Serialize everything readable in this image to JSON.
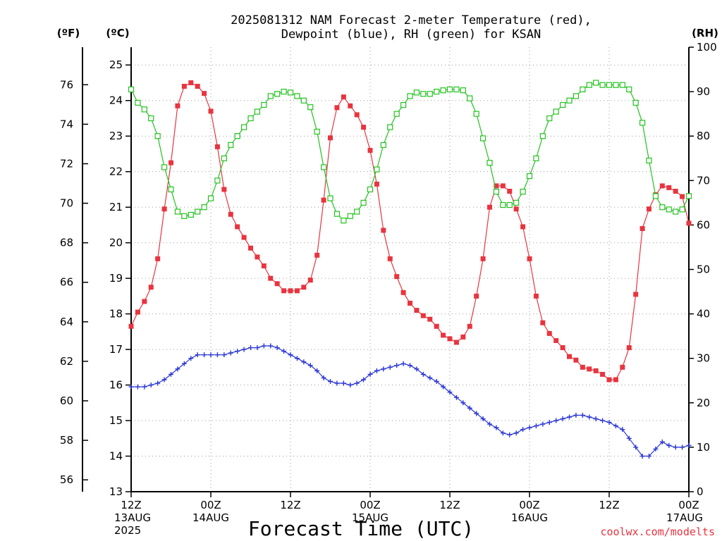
{
  "title_line1": "2025081312 NAM Forecast 2-meter Temperature (red),",
  "title_line2": "Dewpoint (blue), RH (green) for KSAN",
  "unit_f": "(ºF)",
  "unit_c": "(ºC)",
  "unit_rh": "(RH)",
  "x_axis_label": "Forecast Time (UTC)",
  "credit": "coolwx.com/modelts",
  "chart_data": {
    "type": "line",
    "title": "2025081312 NAM Forecast 2-meter Temperature (red), Dewpoint (blue), RH (green) for KSAN",
    "xlabel": "Forecast Time (UTC)",
    "x_forecast_hours": [
      0,
      1,
      2,
      3,
      4,
      5,
      6,
      7,
      8,
      9,
      10,
      11,
      12,
      13,
      14,
      15,
      16,
      17,
      18,
      19,
      20,
      21,
      22,
      23,
      24,
      25,
      26,
      27,
      28,
      29,
      30,
      31,
      32,
      33,
      34,
      35,
      36,
      37,
      38,
      39,
      40,
      41,
      42,
      43,
      44,
      45,
      46,
      47,
      48,
      49,
      50,
      51,
      52,
      53,
      54,
      55,
      56,
      57,
      58,
      59,
      60,
      61,
      62,
      63,
      64,
      65,
      66,
      67,
      68,
      69,
      70,
      71,
      72,
      73,
      74,
      75,
      76,
      77,
      78,
      79,
      80,
      81,
      82,
      83,
      84
    ],
    "x_ticks": [
      {
        "hour": 0,
        "lines": [
          "12Z",
          "13AUG",
          "2025"
        ]
      },
      {
        "hour": 12,
        "lines": [
          "00Z",
          "14AUG"
        ]
      },
      {
        "hour": 24,
        "lines": [
          "12Z"
        ]
      },
      {
        "hour": 36,
        "lines": [
          "00Z",
          "15AUG"
        ]
      },
      {
        "hour": 48,
        "lines": [
          "12Z"
        ]
      },
      {
        "hour": 60,
        "lines": [
          "00Z",
          "16AUG"
        ]
      },
      {
        "hour": 72,
        "lines": [
          "12Z"
        ]
      },
      {
        "hour": 84,
        "lines": [
          "00Z",
          "17AUG"
        ]
      }
    ],
    "y_left_celsius": {
      "label": "(ºC)",
      "range": [
        13,
        25.5
      ],
      "ticks": [
        13,
        14,
        15,
        16,
        17,
        18,
        19,
        20,
        21,
        22,
        23,
        24,
        25
      ]
    },
    "y_left_fahrenheit": {
      "label": "(ºF)",
      "ticks": [
        56,
        58,
        60,
        62,
        64,
        66,
        68,
        70,
        72,
        74,
        76
      ]
    },
    "y_right_rh": {
      "label": "(RH)",
      "range": [
        0,
        100
      ],
      "ticks": [
        0,
        10,
        20,
        30,
        40,
        50,
        60,
        70,
        80,
        90,
        100
      ]
    },
    "grid": true,
    "series": [
      {
        "name": "Temperature",
        "color": "#e8343f",
        "axis": "celsius",
        "marker": "filled-square",
        "values": [
          17.65,
          18.05,
          18.35,
          18.75,
          19.55,
          20.95,
          22.25,
          23.85,
          24.4,
          24.5,
          24.4,
          24.2,
          23.7,
          22.7,
          21.5,
          20.8,
          20.45,
          20.15,
          19.85,
          19.6,
          19.35,
          19.0,
          18.85,
          18.65,
          18.65,
          18.65,
          18.75,
          18.95,
          19.65,
          21.2,
          22.95,
          23.8,
          24.1,
          23.85,
          23.6,
          23.25,
          22.6,
          21.65,
          20.35,
          19.55,
          19.05,
          18.6,
          18.3,
          18.1,
          17.95,
          17.85,
          17.65,
          17.4,
          17.3,
          17.2,
          17.35,
          17.65,
          18.5,
          19.55,
          21.0,
          21.6,
          21.6,
          21.45,
          20.95,
          20.45,
          19.55,
          18.5,
          17.75,
          17.45,
          17.25,
          17.05,
          16.8,
          16.7,
          16.5,
          16.45,
          16.4,
          16.3,
          16.15,
          16.15,
          16.5,
          17.05,
          18.55,
          20.4,
          20.95,
          21.35,
          21.6,
          21.55,
          21.45,
          21.3,
          20.55
        ]
      },
      {
        "name": "Dewpoint",
        "color": "#2a36d6",
        "axis": "celsius",
        "marker": "plus",
        "values": [
          15.95,
          15.95,
          15.95,
          16.0,
          16.05,
          16.15,
          16.3,
          16.45,
          16.6,
          16.75,
          16.85,
          16.85,
          16.85,
          16.85,
          16.85,
          16.9,
          16.95,
          17.0,
          17.05,
          17.05,
          17.1,
          17.1,
          17.05,
          16.95,
          16.85,
          16.75,
          16.65,
          16.55,
          16.4,
          16.2,
          16.1,
          16.05,
          16.05,
          16.0,
          16.05,
          16.15,
          16.3,
          16.4,
          16.45,
          16.5,
          16.55,
          16.6,
          16.55,
          16.45,
          16.3,
          16.2,
          16.1,
          15.95,
          15.8,
          15.65,
          15.5,
          15.35,
          15.2,
          15.05,
          14.9,
          14.8,
          14.65,
          14.6,
          14.65,
          14.75,
          14.8,
          14.85,
          14.9,
          14.95,
          15.0,
          15.05,
          15.1,
          15.15,
          15.15,
          15.1,
          15.05,
          15.0,
          14.95,
          14.85,
          14.75,
          14.5,
          14.25,
          14.0,
          14.0,
          14.2,
          14.4,
          14.3,
          14.25,
          14.25,
          14.3
        ]
      },
      {
        "name": "RH",
        "color": "#22c21e",
        "axis": "rh",
        "marker": "open-square",
        "values": [
          90.5,
          87.5,
          86.0,
          84.0,
          80.0,
          73.0,
          68.0,
          63.0,
          62.0,
          62.3,
          63.0,
          64.0,
          66.0,
          70.0,
          75.0,
          78.0,
          80.0,
          82.0,
          84.0,
          85.5,
          87.0,
          89.0,
          89.5,
          90.0,
          89.8,
          89.0,
          88.0,
          86.5,
          81.0,
          73.0,
          66.0,
          62.5,
          61.0,
          62.0,
          63.0,
          65.0,
          68.0,
          72.5,
          78.0,
          82.0,
          85.0,
          87.0,
          89.0,
          89.8,
          89.5,
          89.5,
          90.0,
          90.3,
          90.5,
          90.5,
          90.3,
          88.5,
          85.0,
          79.5,
          74.0,
          67.5,
          64.5,
          64.5,
          65.0,
          67.5,
          71.0,
          75.0,
          80.0,
          84.0,
          85.5,
          87.0,
          88.0,
          89.0,
          90.5,
          91.5,
          92.0,
          91.5,
          91.5,
          91.5,
          91.5,
          90.5,
          87.5,
          83.0,
          74.5,
          66.5,
          64.0,
          63.5,
          63.0,
          63.5,
          66.5
        ]
      }
    ]
  }
}
